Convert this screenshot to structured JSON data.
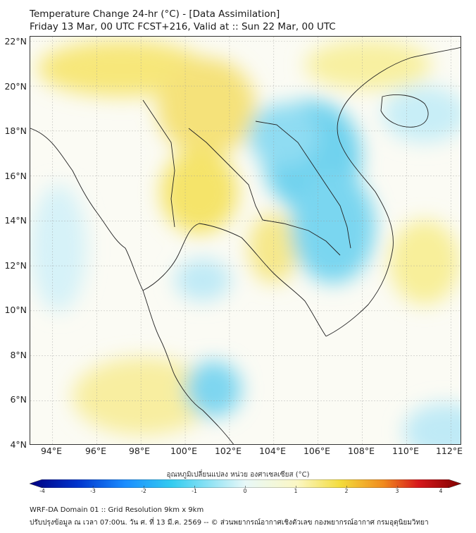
{
  "title": {
    "line1": "Temperature Change 24-hr (°C) - [Data Assimilation]",
    "line2": "Friday 13 Mar, 00 UTC FCST+216, Valid at :: Sun 22 Mar, 00 UTC"
  },
  "map": {
    "lon_range": [
      93.0,
      112.5
    ],
    "lat_range": [
      4.0,
      22.2
    ],
    "field_colors": {
      "warm": "#f5e676",
      "warm_light": "#fbf7c4",
      "neutral": "#fbfbf4",
      "cool": "#5fcfee",
      "cool_light": "#c4f0f8"
    }
  },
  "axes": {
    "y_ticks": [
      "22°N",
      "20°N",
      "18°N",
      "16°N",
      "14°N",
      "12°N",
      "10°N",
      "8°N",
      "6°N",
      "4°N"
    ],
    "x_ticks": [
      "94°E",
      "96°E",
      "98°E",
      "100°E",
      "102°E",
      "104°E",
      "106°E",
      "108°E",
      "110°E",
      "112°E"
    ]
  },
  "colorbar": {
    "title": "อุณหภูมิเปลี่ยนแปลง หน่วย องศาเซลเซียส (°C)",
    "ticks": [
      "-4",
      "-3",
      "-2",
      "-1",
      "0",
      "1",
      "2",
      "3",
      "4"
    ],
    "range": [
      -4,
      4
    ],
    "colors": [
      "#000080",
      "#0033cc",
      "#1a8cff",
      "#33ccf0",
      "#e8f8f8",
      "#fbf7c4",
      "#f3dc3c",
      "#f08a1e",
      "#d7191c",
      "#800000"
    ]
  },
  "footer": {
    "line1": "WRF-DA Domain 01 :: Grid Resolution 9km x 9km",
    "line2": "ปรับปรุงข้อมูล ณ เวลา 07:00น. วัน ศ. ที่ 13 มี.ค. 2569 -- © ส่วนพยากรณ์อากาศเชิงตัวเลข กองพยากรณ์อากาศ กรมอุตุนิยมวิทยา"
  }
}
